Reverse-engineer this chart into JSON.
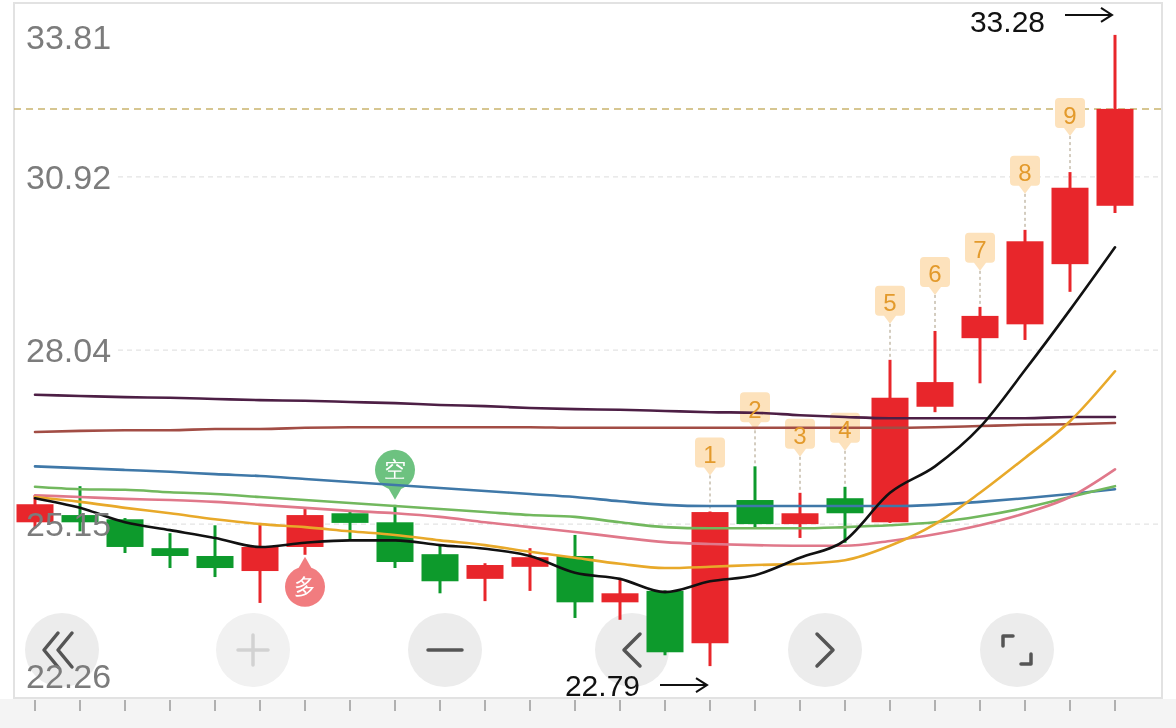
{
  "chart_data": {
    "type": "candlestick",
    "categories": [
      null,
      null,
      null,
      null,
      null,
      null,
      null,
      null,
      null,
      null,
      null,
      null,
      null,
      null,
      null,
      null,
      null,
      null,
      null,
      null,
      null,
      null,
      null,
      null,
      null
    ],
    "ohlc": [
      [
        25.18,
        25.63,
        25.08,
        25.48
      ],
      [
        25.3,
        25.78,
        25.03,
        25.18
      ],
      [
        25.23,
        25.25,
        24.67,
        24.77
      ],
      [
        24.75,
        25.0,
        24.42,
        24.62
      ],
      [
        24.62,
        25.13,
        24.27,
        24.42
      ],
      [
        24.37,
        25.17,
        23.84,
        24.77
      ],
      [
        24.77,
        25.4,
        24.64,
        25.3
      ],
      [
        25.33,
        25.35,
        24.88,
        25.17
      ],
      [
        25.18,
        25.47,
        24.42,
        24.52
      ],
      [
        24.65,
        24.8,
        24.0,
        24.2
      ],
      [
        24.24,
        24.5,
        23.87,
        24.47
      ],
      [
        24.44,
        24.75,
        24.04,
        24.6
      ],
      [
        24.62,
        24.97,
        23.59,
        23.85
      ],
      [
        23.85,
        24.24,
        23.56,
        24.0
      ],
      [
        24.04,
        24.05,
        22.97,
        23.02
      ],
      [
        23.17,
        25.36,
        22.79,
        25.35
      ],
      [
        25.55,
        26.11,
        25.1,
        25.15
      ],
      [
        25.15,
        25.67,
        24.92,
        25.33
      ],
      [
        25.58,
        25.77,
        24.84,
        25.33
      ],
      [
        25.18,
        27.88,
        25.17,
        27.25
      ],
      [
        27.1,
        28.36,
        27.01,
        27.51
      ],
      [
        28.24,
        28.76,
        27.49,
        28.61
      ],
      [
        28.47,
        30.04,
        28.21,
        29.85
      ],
      [
        29.47,
        31.0,
        29.01,
        30.74
      ],
      [
        30.44,
        33.28,
        30.32,
        32.05
      ]
    ],
    "colors": [
      "#e8262b",
      "#0d9a2c",
      "#0d9a2c",
      "#0d9a2c",
      "#0d9a2c",
      "#e8262b",
      "#e8262b",
      "#0d9a2c",
      "#0d9a2c",
      "#0d9a2c",
      "#e8262b",
      "#e8262b",
      "#0d9a2c",
      "#e8262b",
      "#0d9a2c",
      "#e8262b",
      "#0d9a2c",
      "#e8262b",
      "#0d9a2c",
      "#e8262b",
      "#e8262b",
      "#e8262b",
      "#e8262b",
      "#e8262b",
      "#e8262b"
    ],
    "value_labels": [
      null,
      null,
      null,
      null,
      null,
      null,
      "多",
      null,
      "空",
      null,
      null,
      null,
      null,
      null,
      null,
      "1",
      "2",
      "3",
      "4",
      "5",
      "6",
      "7",
      "8",
      "9",
      null
    ],
    "series": [
      {
        "type": "line",
        "color": "#4d1f45",
        "values": [
          27.3,
          27.28,
          27.26,
          27.25,
          27.23,
          27.21,
          27.2,
          27.18,
          27.16,
          27.13,
          27.11,
          27.08,
          27.06,
          27.05,
          27.03,
          27.01,
          27.0,
          26.96,
          26.93,
          26.91,
          26.91,
          26.91,
          26.91,
          26.93,
          26.93
        ]
      },
      {
        "type": "line",
        "color": "#a24d45",
        "values": [
          26.68,
          26.7,
          26.71,
          26.71,
          26.73,
          26.73,
          26.75,
          26.76,
          26.76,
          26.76,
          26.76,
          26.76,
          26.75,
          26.75,
          26.75,
          26.75,
          26.75,
          26.75,
          26.75,
          26.75,
          26.76,
          26.78,
          26.8,
          26.81,
          26.83
        ]
      },
      {
        "type": "line",
        "color": "#3f78a8",
        "values": [
          26.11,
          26.08,
          26.05,
          26.02,
          25.98,
          25.95,
          25.9,
          25.85,
          25.8,
          25.75,
          25.7,
          25.65,
          25.6,
          25.53,
          25.47,
          25.45,
          25.45,
          25.45,
          25.45,
          25.45,
          25.47,
          25.52,
          25.58,
          25.65,
          25.73
        ]
      },
      {
        "type": "line",
        "color": "#72b85e",
        "values": [
          25.77,
          25.73,
          25.72,
          25.68,
          25.65,
          25.6,
          25.55,
          25.5,
          25.45,
          25.4,
          25.35,
          25.3,
          25.27,
          25.18,
          25.1,
          25.08,
          25.08,
          25.08,
          25.1,
          25.13,
          25.18,
          25.28,
          25.42,
          25.6,
          25.78
        ]
      },
      {
        "type": "line",
        "color": "#e0788a",
        "values": [
          25.63,
          25.6,
          25.57,
          25.55,
          25.52,
          25.47,
          25.42,
          25.37,
          25.33,
          25.27,
          25.18,
          25.1,
          25.02,
          24.93,
          24.85,
          24.82,
          24.8,
          24.79,
          24.79,
          24.87,
          24.98,
          25.13,
          25.33,
          25.6,
          26.06
        ]
      },
      {
        "type": "line",
        "color": "#e8a92a",
        "values": [
          25.6,
          25.52,
          25.42,
          25.33,
          25.23,
          25.15,
          25.1,
          25.03,
          24.97,
          24.88,
          24.8,
          24.69,
          24.59,
          24.49,
          24.42,
          24.44,
          24.47,
          24.49,
          24.55,
          24.79,
          25.15,
          25.67,
          26.25,
          26.86,
          27.69
        ]
      },
      {
        "type": "line",
        "color": "#111111",
        "values": [
          25.58,
          25.42,
          25.18,
          25.05,
          24.92,
          24.77,
          24.84,
          24.88,
          24.88,
          24.8,
          24.74,
          24.62,
          24.34,
          24.24,
          24.02,
          24.2,
          24.3,
          24.59,
          24.88,
          25.67,
          26.11,
          26.76,
          27.71,
          28.71,
          29.75
        ]
      }
    ],
    "ylim": [
      22.26,
      33.81
    ],
    "yticks": [
      22.26,
      25.15,
      28.04,
      30.92,
      33.81
    ],
    "grid": "y",
    "tick_labels": "y",
    "ref_lines": [
      {
        "axis": "y",
        "value": 32.05,
        "color": "#c9b46e",
        "line_style": "dashed"
      }
    ],
    "annotations": [
      "33.28",
      "22.79"
    ]
  }
}
